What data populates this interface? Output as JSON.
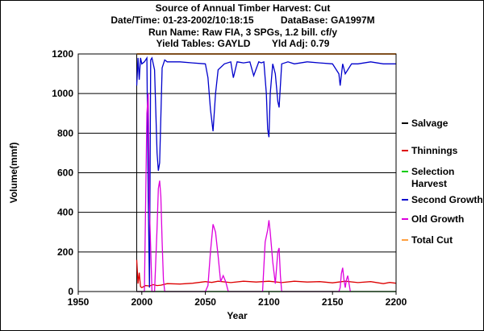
{
  "chart_data": {
    "type": "line",
    "title_lines": [
      "Source of Annual Timber Harvest: Cut",
      "Date/Time: 01-23-2002/10:18:15          DataBase: GA1997M",
      "Run Name: Raw FIA, 3 SPGs, 1.2 bill. cf/y",
      "Yield Tables: GAYLD        Yld Adj: 0.79"
    ],
    "xlabel": "Year",
    "ylabel": "Volume(mmf)",
    "xlim": [
      1950,
      2200
    ],
    "ylim": [
      0,
      1200
    ],
    "x_ticks": [
      1950,
      2000,
      2050,
      2100,
      2150,
      2200
    ],
    "y_ticks": [
      0,
      200,
      400,
      600,
      800,
      1000,
      1200
    ],
    "grid": "horizontal",
    "legend_position": "right",
    "series": [
      {
        "name": "Salvage",
        "color": "#000000",
        "x": [
          1996,
          2200
        ],
        "y": [
          0,
          0
        ]
      },
      {
        "name": "Thinnings",
        "color": "#dd0000",
        "x": [
          1996,
          1997,
          1998,
          1999,
          2000,
          2003,
          2006,
          2009,
          2012,
          2015,
          2020,
          2030,
          2040,
          2050,
          2055,
          2060,
          2070,
          2080,
          2090,
          2100,
          2110,
          2120,
          2130,
          2140,
          2150,
          2160,
          2170,
          2180,
          2190,
          2195,
          2200
        ],
        "y": [
          160,
          40,
          95,
          25,
          20,
          30,
          28,
          35,
          30,
          32,
          40,
          38,
          42,
          50,
          46,
          52,
          45,
          52,
          48,
          52,
          45,
          52,
          48,
          50,
          44,
          52,
          45,
          50,
          40,
          46,
          42
        ]
      },
      {
        "name": "Selection Harvest",
        "color": "#00cc00",
        "x": [
          1996,
          2200
        ],
        "y": [
          0,
          0
        ]
      },
      {
        "name": "Second Growth",
        "color": "#0000cc",
        "x": [
          1996,
          1997,
          1998,
          1999,
          2000,
          2002,
          2004,
          2005,
          2006,
          2007,
          2008,
          2010,
          2012,
          2013,
          2014,
          2016,
          2018,
          2020,
          2030,
          2040,
          2050,
          2052,
          2054,
          2056,
          2058,
          2060,
          2065,
          2070,
          2072,
          2075,
          2080,
          2085,
          2088,
          2092,
          2094,
          2096,
          2098,
          2099,
          2100,
          2101,
          2103,
          2105,
          2107,
          2108,
          2110,
          2115,
          2120,
          2130,
          2140,
          2150,
          2155,
          2156,
          2158,
          2160,
          2165,
          2170,
          2180,
          2190,
          2200
        ],
        "y": [
          1040,
          1180,
          1070,
          1180,
          1150,
          1160,
          1180,
          500,
          20,
          1170,
          1180,
          1120,
          700,
          610,
          650,
          1130,
          1170,
          1160,
          1160,
          1155,
          1150,
          1080,
          920,
          810,
          1000,
          1120,
          1150,
          1160,
          1080,
          1160,
          1155,
          1160,
          1090,
          1160,
          1155,
          1160,
          1000,
          820,
          780,
          1000,
          1150,
          1100,
          960,
          930,
          1150,
          1160,
          1150,
          1160,
          1155,
          1150,
          1100,
          1040,
          1150,
          1100,
          1150,
          1150,
          1160,
          1150,
          1150
        ]
      },
      {
        "name": "Old Growth",
        "color": "#dd00dd",
        "x": [
          1996,
          1998,
          2000,
          2002,
          2004,
          2005,
          2006,
          2008,
          2010,
          2012,
          2013,
          2014,
          2015,
          2016,
          2017,
          2018,
          2020,
          2050,
          2052,
          2054,
          2056,
          2058,
          2060,
          2062,
          2064,
          2066,
          2068,
          2070,
          2095,
          2097,
          2099,
          2100,
          2101,
          2103,
          2105,
          2107,
          2108,
          2109,
          2110,
          2155,
          2156,
          2157,
          2158,
          2159,
          2160,
          2161,
          2162,
          2163,
          2164
        ],
        "y": [
          0,
          0,
          0,
          0,
          900,
          1000,
          420,
          0,
          0,
          320,
          520,
          560,
          480,
          250,
          60,
          0,
          0,
          0,
          30,
          200,
          340,
          300,
          180,
          50,
          80,
          50,
          0,
          0,
          0,
          250,
          310,
          360,
          300,
          150,
          40,
          200,
          220,
          80,
          0,
          0,
          20,
          90,
          120,
          60,
          20,
          60,
          80,
          40,
          0
        ]
      },
      {
        "name": "Total Cut",
        "color": "#ffa040",
        "x": [
          1996,
          2200
        ],
        "y": [
          1200,
          1200
        ]
      }
    ]
  }
}
